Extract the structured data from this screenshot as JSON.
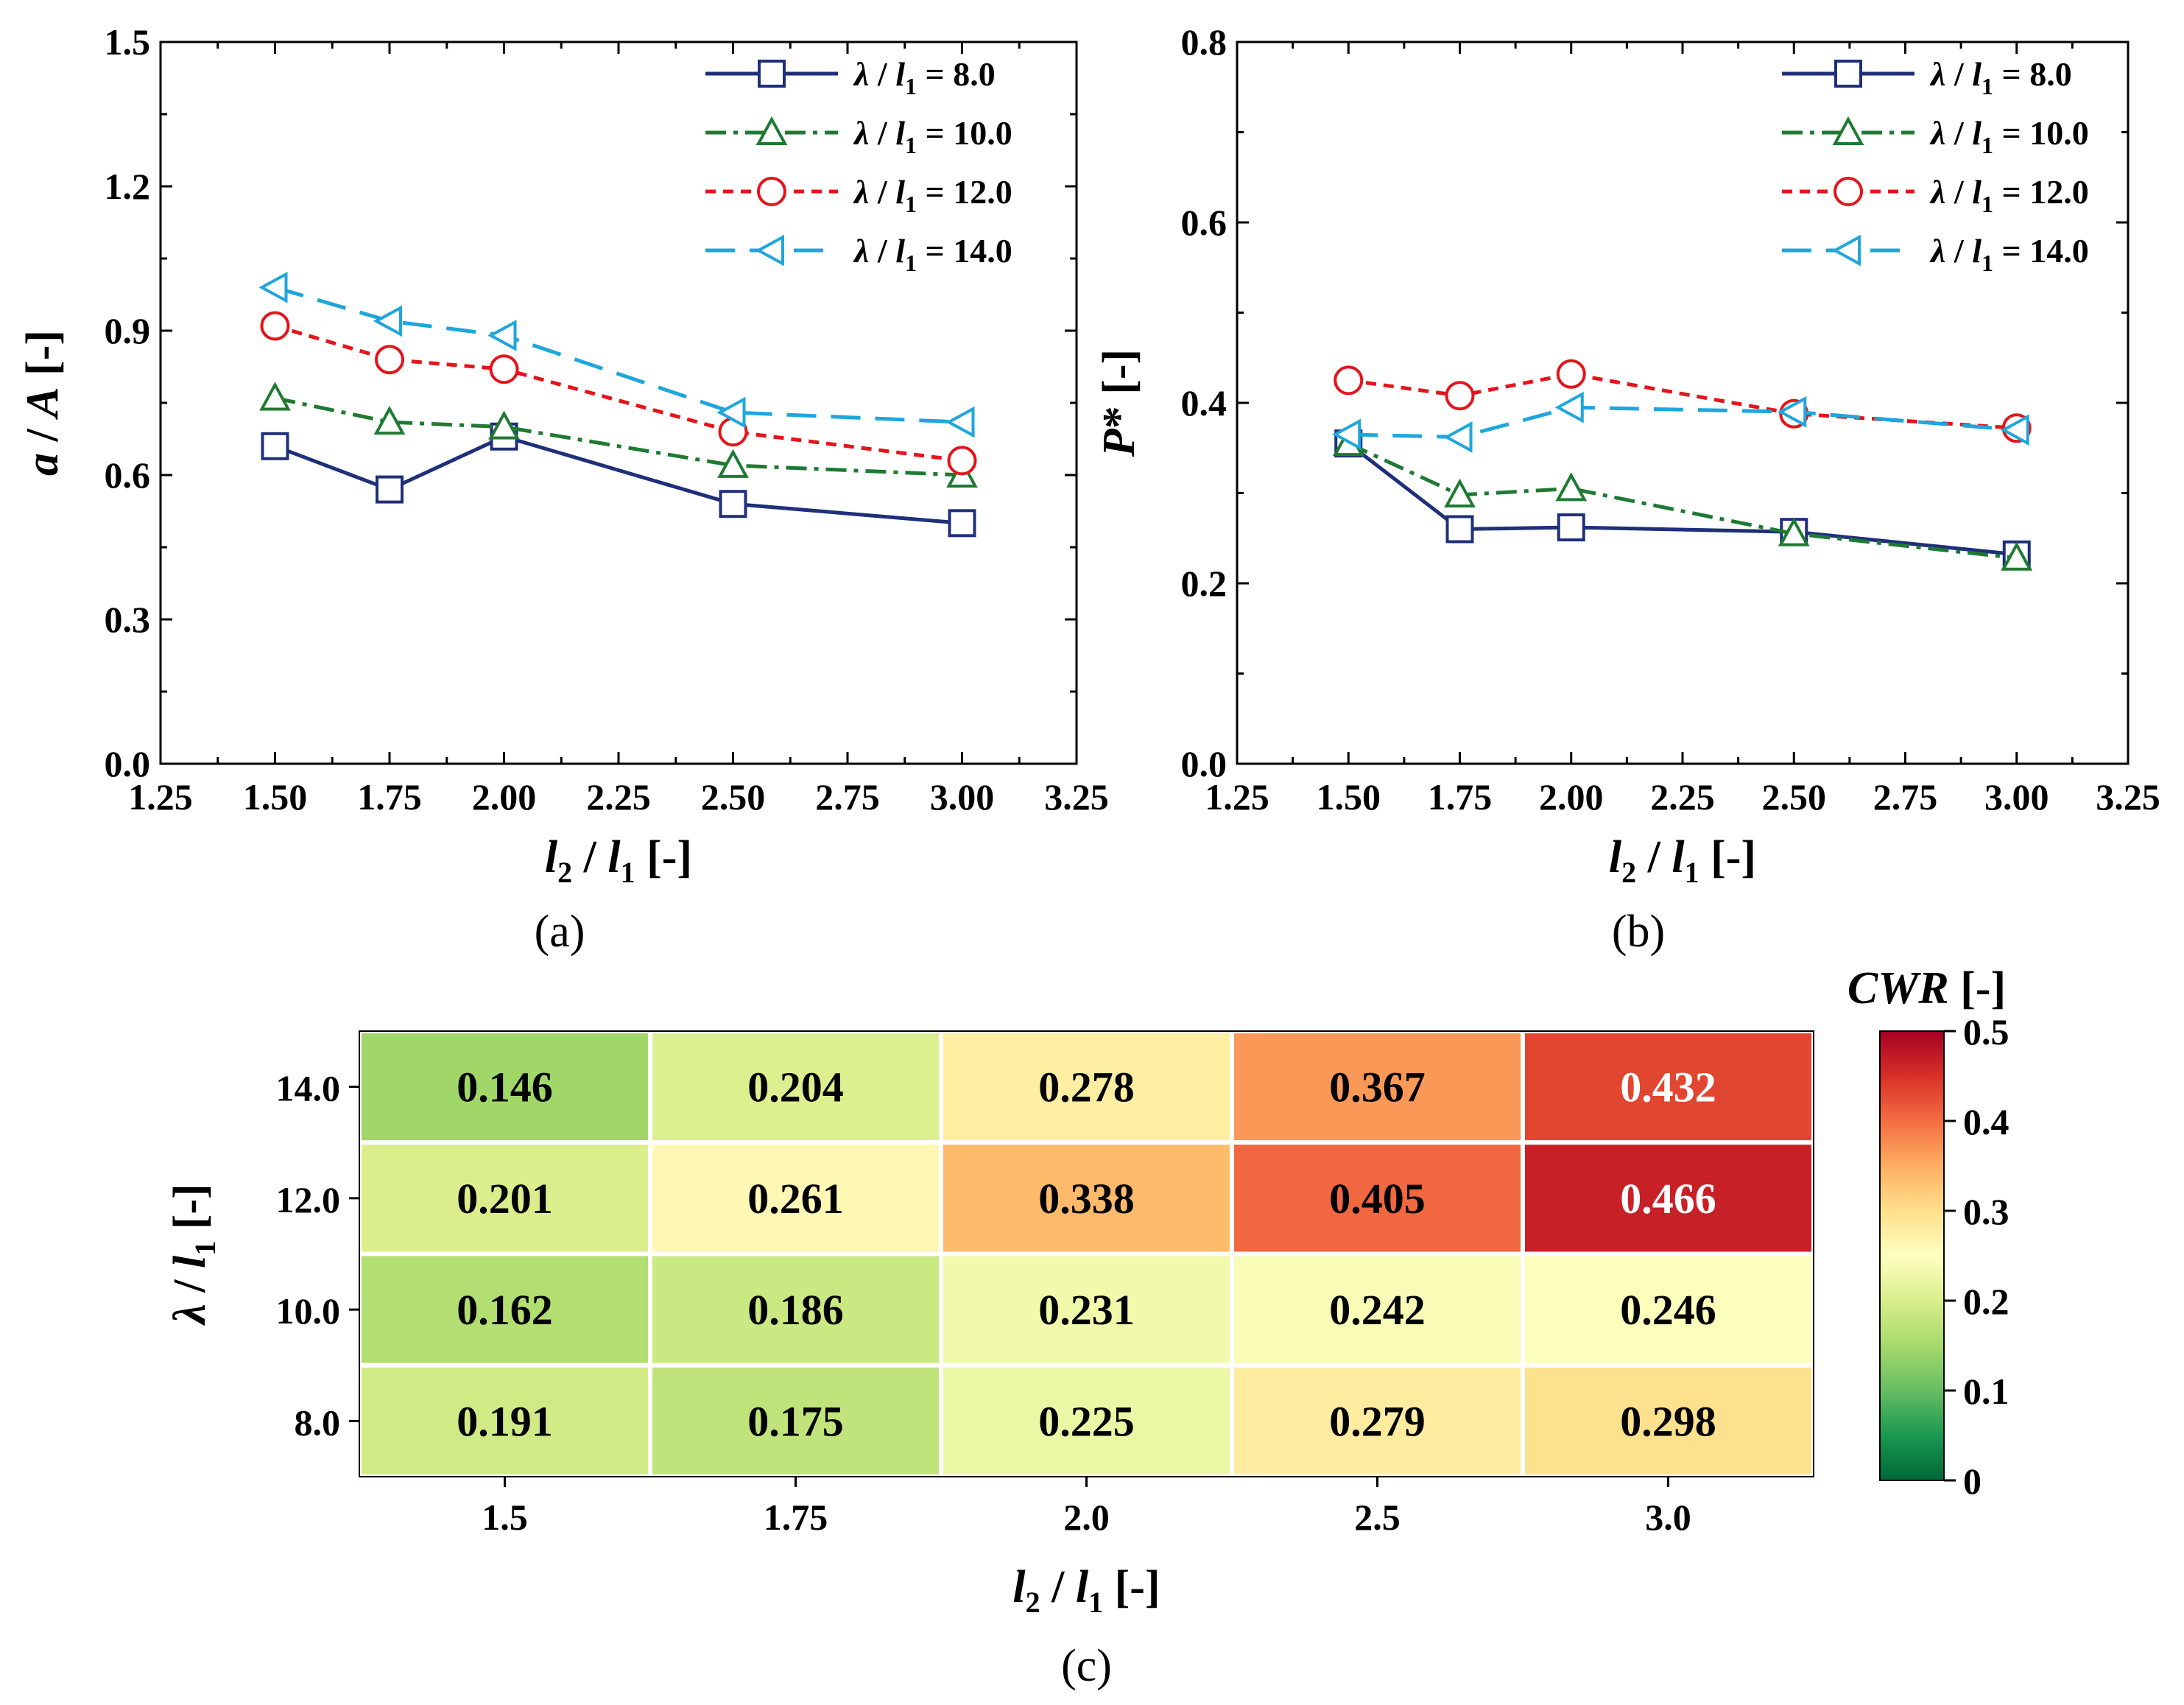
{
  "chart_data": [
    {
      "panel_label": "(a)",
      "type": "line",
      "ylabel": "a / A [-]",
      "xlabel": "l2 / l1 [-]",
      "xlim": [
        1.25,
        3.25
      ],
      "ylim": [
        0.0,
        1.5
      ],
      "xticks": [
        "1.25",
        "1.50",
        "1.75",
        "2.00",
        "2.25",
        "2.50",
        "2.75",
        "3.00",
        "3.25"
      ],
      "yticks": [
        "0.0",
        "0.3",
        "0.6",
        "0.9",
        "1.2",
        "1.5"
      ],
      "x": [
        1.5,
        1.75,
        2.0,
        2.5,
        3.0
      ],
      "legend_position": "top-right",
      "series": [
        {
          "name": "λ / l1 = 8.0",
          "value_label": "8.0",
          "marker": "square",
          "color": "#1f2f7a",
          "dash": "",
          "values": [
            0.66,
            0.57,
            0.68,
            0.54,
            0.5
          ]
        },
        {
          "name": "λ / l1 = 10.0",
          "value_label": "10.0",
          "marker": "triangle-up",
          "color": "#1e7a32",
          "dash": "28 10 6 10",
          "values": [
            0.76,
            0.71,
            0.7,
            0.62,
            0.6
          ]
        },
        {
          "name": "λ / l1 = 12.0",
          "value_label": "12.0",
          "marker": "circle",
          "color": "#e5141b",
          "dash": "14 10",
          "values": [
            0.91,
            0.84,
            0.82,
            0.69,
            0.63
          ]
        },
        {
          "name": "λ / l1 = 14.0",
          "value_label": "14.0",
          "marker": "triangle-left",
          "color": "#1ea6dd",
          "dash": "40 20",
          "values": [
            0.99,
            0.92,
            0.89,
            0.73,
            0.71
          ]
        }
      ]
    },
    {
      "panel_label": "(b)",
      "type": "line",
      "ylabel": "P* [-]",
      "xlabel": "l2 / l1 [-]",
      "xlim": [
        1.25,
        3.25
      ],
      "ylim": [
        0.0,
        0.8
      ],
      "xticks": [
        "1.25",
        "1.50",
        "1.75",
        "2.00",
        "2.25",
        "2.50",
        "2.75",
        "3.00",
        "3.25"
      ],
      "yticks": [
        "0.0",
        "0.2",
        "0.4",
        "0.6",
        "0.8"
      ],
      "x": [
        1.5,
        1.75,
        2.0,
        2.5,
        3.0
      ],
      "legend_position": "top-right",
      "series": [
        {
          "name": "λ / l1 = 8.0",
          "value_label": "8.0",
          "marker": "square",
          "color": "#1f2f7a",
          "dash": "",
          "values": [
            0.355,
            0.26,
            0.262,
            0.257,
            0.232
          ]
        },
        {
          "name": "λ / l1 = 10.0",
          "value_label": "10.0",
          "marker": "triangle-up",
          "color": "#1e7a32",
          "dash": "28 10 6 10",
          "values": [
            0.355,
            0.298,
            0.305,
            0.255,
            0.228
          ]
        },
        {
          "name": "λ / l1 = 12.0",
          "value_label": "12.0",
          "marker": "circle",
          "color": "#e5141b",
          "dash": "14 10",
          "values": [
            0.425,
            0.408,
            0.432,
            0.388,
            0.372
          ]
        },
        {
          "name": "λ / l1 = 14.0",
          "value_label": "14.0",
          "marker": "triangle-left",
          "color": "#1ea6dd",
          "dash": "40 20",
          "values": [
            0.365,
            0.362,
            0.395,
            0.39,
            0.37
          ]
        }
      ]
    },
    {
      "panel_label": "(c)",
      "type": "heatmap",
      "xlabel": "l2 / l1 [-]",
      "ylabel": "λ / l1 [-]",
      "x_categories": [
        "1.5",
        "1.75",
        "2.0",
        "2.5",
        "3.0"
      ],
      "y_categories": [
        "14.0",
        "12.0",
        "10.0",
        "8.0"
      ],
      "values": [
        [
          0.146,
          0.204,
          0.278,
          0.367,
          0.432
        ],
        [
          0.201,
          0.261,
          0.338,
          0.405,
          0.466
        ],
        [
          0.162,
          0.186,
          0.231,
          0.242,
          0.246
        ],
        [
          0.191,
          0.175,
          0.225,
          0.279,
          0.298
        ]
      ],
      "cell_labels": [
        [
          "0.146",
          "0.204",
          "0.278",
          "0.367",
          "0.432"
        ],
        [
          "0.201",
          "0.261",
          "0.338",
          "0.405",
          "0.466"
        ],
        [
          "0.162",
          "0.186",
          "0.231",
          "0.242",
          "0.246"
        ],
        [
          "0.191",
          "0.175",
          "0.225",
          "0.279",
          "0.298"
        ]
      ],
      "colorbar_title": "CWR [-]",
      "colorbar_range": [
        0,
        0.5
      ],
      "colorbar_ticks": [
        "0",
        "0.1",
        "0.2",
        "0.3",
        "0.4",
        "0.5"
      ],
      "colormap": [
        "#006837",
        "#1a9850",
        "#66bd63",
        "#a6d96a",
        "#d9ef8b",
        "#ffffbf",
        "#fee08b",
        "#fdae61",
        "#f46d43",
        "#d73027",
        "#a50026"
      ]
    }
  ]
}
